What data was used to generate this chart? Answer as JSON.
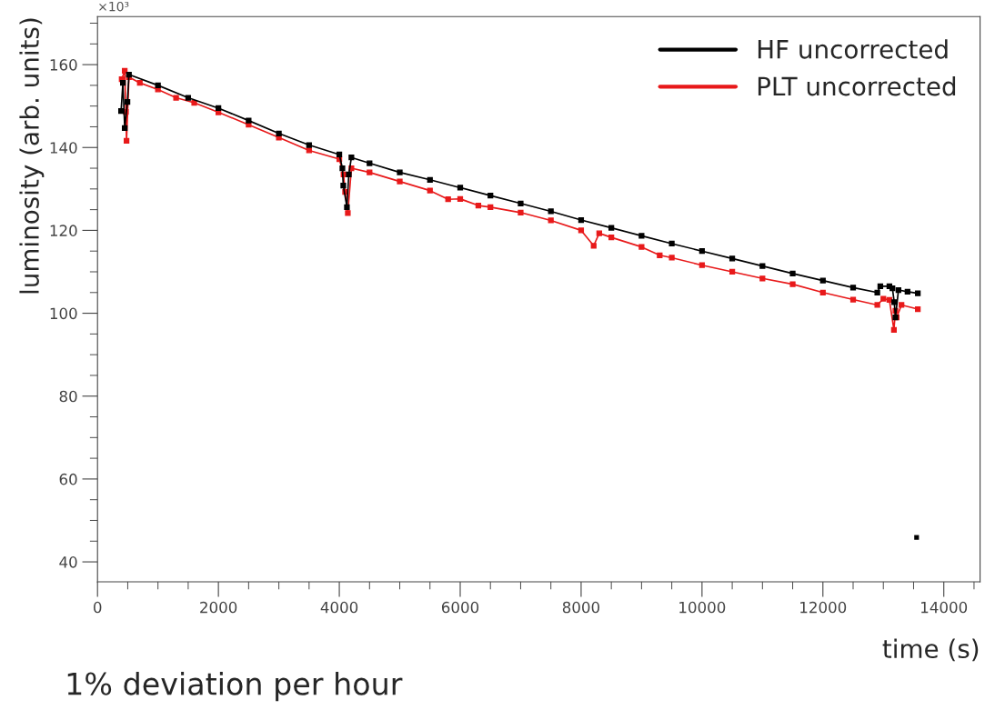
{
  "chart_data": {
    "type": "line",
    "xlabel": "time (s)",
    "ylabel": "luminosity (arb. units)",
    "annotations": [
      "×10³",
      "1% deviation per hour"
    ],
    "xlim": [
      0,
      14600
    ],
    "xticks": [
      0,
      2000,
      4000,
      6000,
      8000,
      10000,
      12000,
      14000
    ],
    "ylim": [
      35.2,
      171.6
    ],
    "yticks": [
      40,
      60,
      80,
      100,
      120,
      140,
      160
    ],
    "grid": false,
    "legend": "top right",
    "marker": "square",
    "line_style": "solid",
    "series": [
      {
        "name": "HF uncorrected",
        "color": "#000000",
        "x": [
          390,
          420,
          450,
          495,
          520,
          1000,
          1500,
          2000,
          2500,
          3000,
          3500,
          4000,
          4051,
          4066,
          4126,
          4157,
          4200,
          4500,
          5000,
          5500,
          6000,
          6500,
          7000,
          7500,
          8000,
          8500,
          9000,
          9500,
          10000,
          10500,
          11000,
          11500,
          12000,
          12500,
          12900,
          12950,
          13100,
          13150,
          13180,
          13200,
          13250,
          13400,
          13570
        ],
        "values": [
          148.8,
          155.6,
          144.7,
          151.0,
          157.6,
          155.0,
          152.0,
          149.5,
          146.5,
          143.4,
          140.6,
          138.3,
          135.0,
          130.8,
          125.6,
          133.5,
          137.6,
          136.2,
          134.0,
          132.2,
          130.3,
          128.4,
          126.5,
          124.6,
          122.5,
          120.6,
          118.7,
          116.8,
          115.0,
          113.2,
          111.4,
          109.6,
          107.9,
          106.2,
          105.0,
          106.5,
          106.5,
          106.0,
          102.7,
          99.0,
          105.6,
          105.2,
          104.8
        ]
      },
      {
        "name": "PLT uncorrected",
        "color": "#e8191a",
        "x": [
          400,
          450,
          470,
          480,
          520,
          700,
          1000,
          1300,
          1600,
          2000,
          2500,
          3000,
          3500,
          4000,
          4070,
          4096,
          4141,
          4200,
          4500,
          5000,
          5500,
          5800,
          6000,
          6300,
          6500,
          7000,
          7500,
          8000,
          8208,
          8300,
          8500,
          9000,
          9300,
          9500,
          10000,
          10500,
          11000,
          11500,
          12000,
          12500,
          12900,
          13000,
          13100,
          13175,
          13200,
          13220,
          13300,
          13570
        ],
        "values": [
          156.5,
          158.5,
          148.6,
          141.6,
          157.0,
          155.6,
          154.0,
          152.0,
          150.8,
          148.5,
          145.5,
          142.4,
          139.3,
          137.2,
          133.5,
          129.3,
          124.2,
          135.0,
          134.0,
          131.8,
          129.6,
          127.5,
          127.6,
          126.0,
          125.6,
          124.3,
          122.4,
          120.0,
          116.3,
          119.3,
          118.3,
          116.0,
          114.0,
          113.4,
          111.6,
          110.0,
          108.4,
          107.0,
          105.0,
          103.3,
          102.0,
          103.5,
          103.2,
          96.0,
          100.6,
          99.0,
          102.0,
          101.0
        ]
      },
      {
        "type": "scatter",
        "color": "#000000",
        "x": [
          13550
        ],
        "values": [
          45.9
        ]
      }
    ]
  }
}
